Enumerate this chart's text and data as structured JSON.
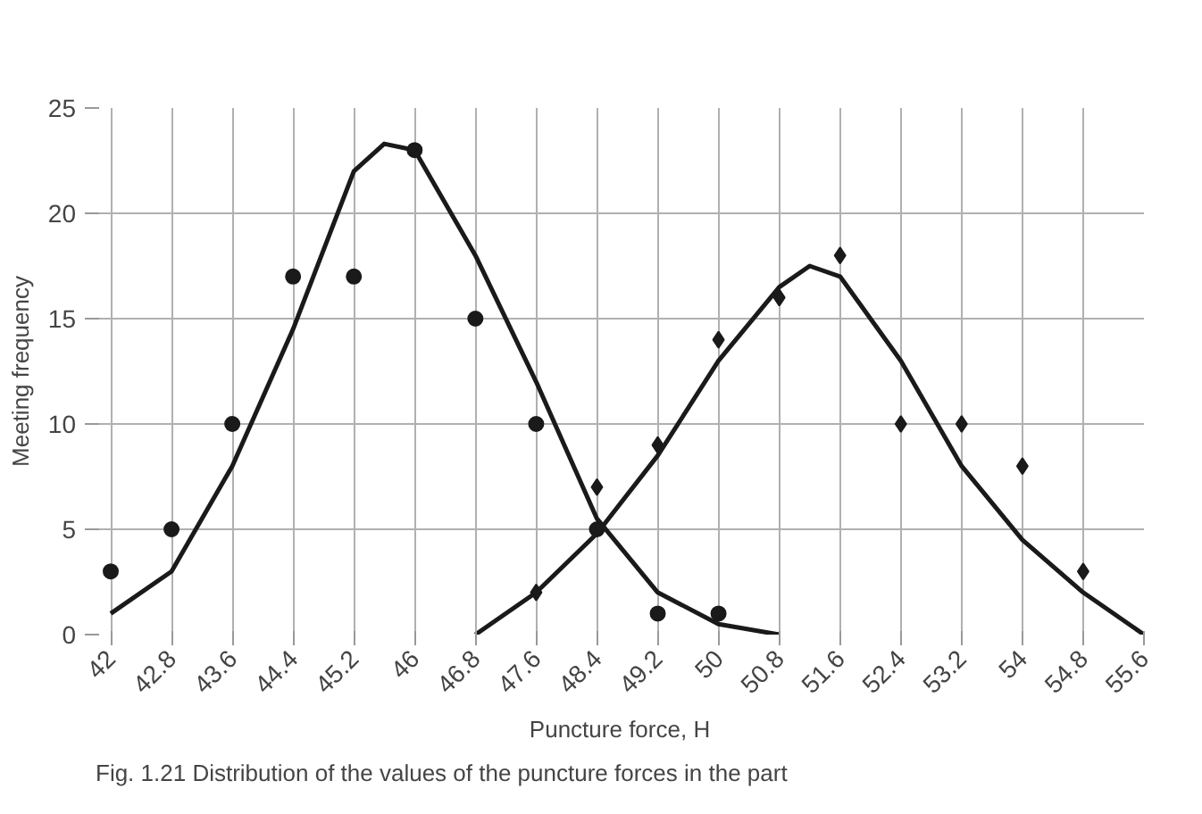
{
  "chart_data": {
    "type": "scatter",
    "xlabel": "Puncture force, H",
    "ylabel": "Meeting frequency",
    "xlim": [
      41.8,
      55.6
    ],
    "ylim": [
      0,
      25
    ],
    "xticks": [
      42,
      42.8,
      43.6,
      44.4,
      45.2,
      46,
      46.8,
      47.6,
      48.4,
      49.2,
      50,
      50.8,
      51.6,
      52.4,
      53.2,
      54,
      54.8,
      55.6
    ],
    "yticks": [
      0,
      5,
      10,
      15,
      20,
      25
    ],
    "grid": true,
    "annotations": [
      "Fig. 1.21  Distribution of the values of the puncture forces in the part"
    ],
    "series": [
      {
        "marker": "circle",
        "color": "#1a1a1a",
        "x": [
          42,
          42.8,
          43.6,
          44.4,
          45.2,
          46,
          46.8,
          47.6,
          48.4,
          49.2,
          50
        ],
        "values": [
          3,
          5,
          10,
          17,
          17,
          23,
          15,
          10,
          5,
          1,
          1
        ]
      },
      {
        "marker": "diamond",
        "color": "#1a1a1a",
        "x": [
          47.6,
          48.4,
          49.2,
          50,
          50.8,
          51.6,
          52.4,
          53.2,
          54,
          54.8
        ],
        "values": [
          2,
          7,
          9,
          14,
          16,
          18,
          10,
          10,
          8,
          3
        ]
      },
      {
        "type": "line",
        "line_style": "solid",
        "color": "#1a1a1a",
        "x": [
          42,
          42.8,
          43.6,
          44.4,
          45.2,
          45.6,
          46,
          46.8,
          47.6,
          48.4,
          49.2,
          50,
          50.8
        ],
        "values": [
          1,
          3,
          8,
          14.5,
          22,
          23.3,
          23,
          18,
          12,
          5.5,
          2,
          0.5,
          0
        ]
      },
      {
        "type": "line",
        "line_style": "solid",
        "color": "#1a1a1a",
        "x": [
          46.8,
          47.6,
          48.4,
          49.2,
          50,
          50.8,
          51.2,
          51.6,
          52.4,
          53.2,
          54,
          54.8,
          55.6
        ],
        "values": [
          0,
          2,
          4.8,
          8.5,
          13,
          16.5,
          17.5,
          17,
          13,
          8,
          4.5,
          2,
          0
        ]
      }
    ]
  }
}
